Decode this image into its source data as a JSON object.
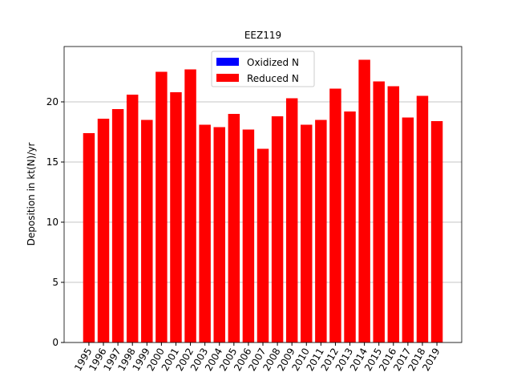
{
  "chart_data": {
    "type": "bar",
    "stacked": true,
    "title": "EEZ119",
    "ylabel": "Deposition in kt(N)/yr",
    "categories": [
      "1995",
      "1996",
      "1997",
      "1998",
      "1999",
      "2000",
      "2001",
      "2002",
      "2003",
      "2004",
      "2005",
      "2006",
      "2007",
      "2008",
      "2009",
      "2010",
      "2011",
      "2012",
      "2013",
      "2014",
      "2015",
      "2016",
      "2017",
      "2018",
      "2019"
    ],
    "series": [
      {
        "name": "Oxidized N",
        "color": "#0000ff",
        "values": [
          0,
          0,
          0,
          0,
          0,
          0,
          0,
          0,
          0,
          0,
          0,
          0,
          0,
          0,
          0,
          0,
          0,
          0,
          0,
          0,
          0,
          0,
          0,
          0,
          0
        ]
      },
      {
        "name": "Reduced N",
        "color": "#ff0000",
        "values": [
          17.4,
          18.6,
          19.4,
          20.6,
          18.5,
          22.5,
          20.8,
          22.7,
          18.1,
          17.9,
          19.0,
          17.7,
          16.1,
          18.8,
          20.3,
          18.1,
          18.5,
          21.1,
          19.2,
          23.5,
          21.7,
          21.3,
          18.7,
          20.5,
          18.4
        ]
      }
    ],
    "ylim": [
      0,
      24.6
    ],
    "yticks": [
      0,
      5,
      10,
      15,
      20
    ],
    "grid": true,
    "legend": "upper center"
  }
}
